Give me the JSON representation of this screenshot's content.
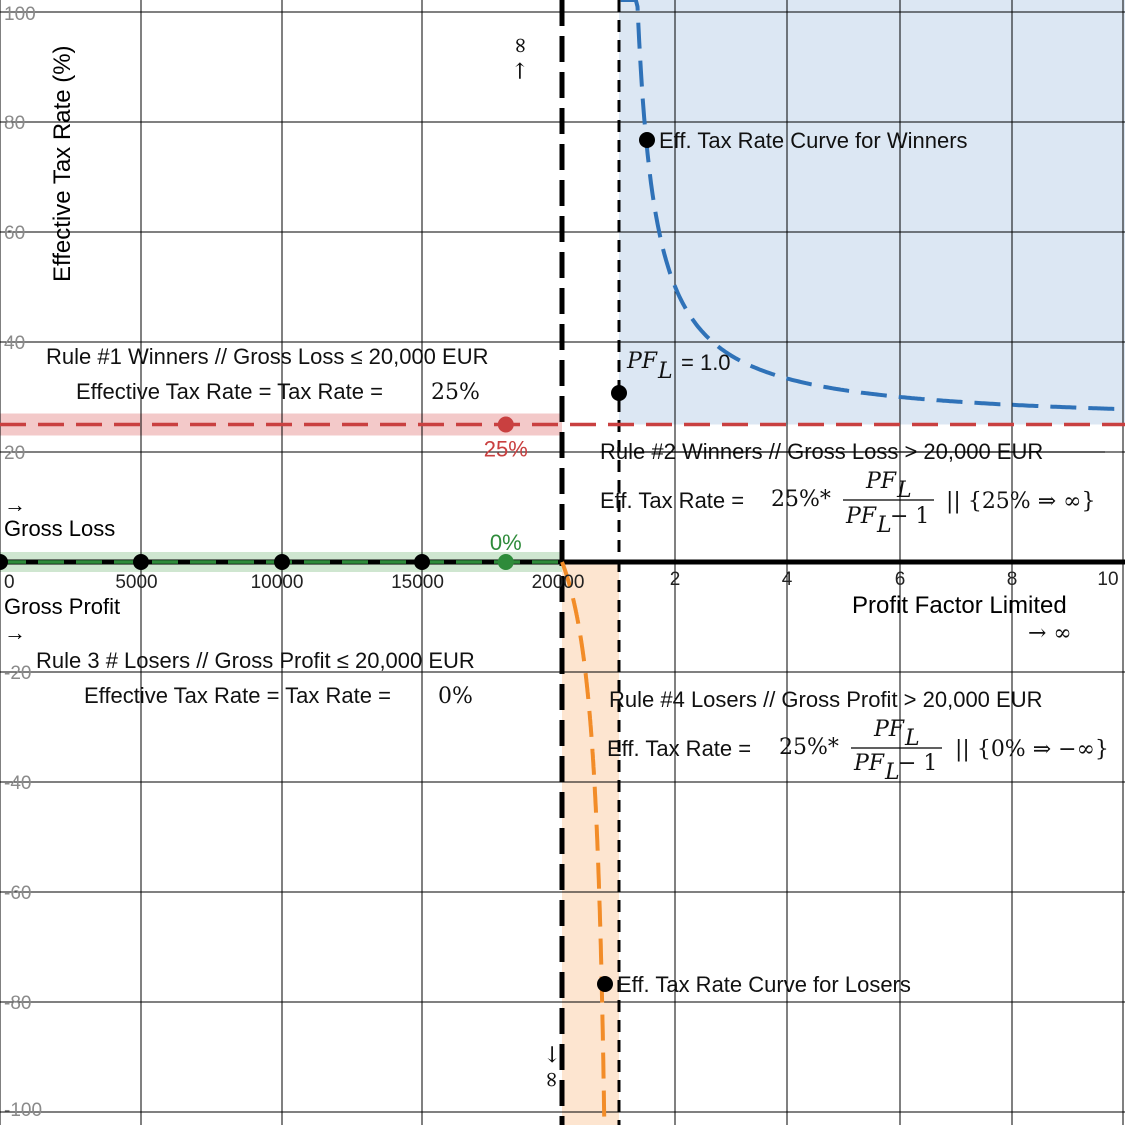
{
  "chart_data": {
    "type": "line",
    "ylabel": "Effective Tax Rate (%)",
    "xlabel": "Profit Factor Limited",
    "x_arrow": "→ ∞",
    "ylim": [
      -100,
      100
    ],
    "y_ticks": [
      "100",
      "80",
      "60",
      "40",
      "20",
      "-20",
      "-40",
      "-60",
      "-80",
      "-100"
    ],
    "left_axis": {
      "label_up": "Gross Loss",
      "label_down": "Gross Profit",
      "arrow_up": "→",
      "arrow_down": "→",
      "ticks": [
        0,
        5000,
        10000,
        15000,
        20000
      ],
      "tick_labels": [
        "0",
        "5000",
        "10000",
        "15000",
        "20000"
      ]
    },
    "right_axis": {
      "ticks": [
        2,
        4,
        6,
        8,
        10
      ],
      "tick_labels": [
        "2",
        "4",
        "6",
        "8",
        "10"
      ]
    },
    "divider_arrows": {
      "up": "→ ∞",
      "down": "→ ∞"
    },
    "series": [
      {
        "name": "Eff. Tax Rate Curve for Winners",
        "color": "#2f72b8",
        "formula": "25*pf/(pf-1)",
        "domain": [
          1.0,
          10
        ]
      },
      {
        "name": "Eff. Tax Rate Curve for Losers",
        "color": "#f28c28",
        "formula": "25*pf/(pf-1)",
        "domain": [
          0,
          1.0
        ]
      },
      {
        "name": "",
        "color": "#c94040",
        "value": 25
      },
      {
        "name": "",
        "color": "#2e8b3a",
        "value": 0
      }
    ],
    "points": [
      {
        "label": "25%",
        "color": "#c94040",
        "x": 18000,
        "y": 25,
        "axis": "left"
      },
      {
        "label": "0%",
        "color": "#2e8b3a",
        "x": 18000,
        "y": 0,
        "axis": "left"
      },
      {
        "label": "",
        "color": "#000000",
        "x": 0,
        "y": 0,
        "axis": "left"
      },
      {
        "label": "",
        "color": "#000000",
        "x": 5000,
        "y": 0,
        "axis": "left"
      },
      {
        "label": "",
        "color": "#000000",
        "x": 10000,
        "y": 0,
        "axis": "left"
      },
      {
        "label": "",
        "color": "#000000",
        "x": 15000,
        "y": 0,
        "axis": "left"
      },
      {
        "label": "",
        "color": "#000000",
        "x": 1.0,
        "y": 30,
        "axis": "right"
      },
      {
        "label": "",
        "color": "#000000",
        "x": 1.5,
        "y": 75,
        "axis": "right"
      },
      {
        "label": "",
        "color": "#000000",
        "x": 0.75,
        "y": -75,
        "axis": "right"
      }
    ],
    "annotations": {
      "pfl_label": "= 1.0",
      "winners_curve_label": "Eff. Tax Rate Curve for Winners",
      "losers_curve_label": "Eff. Tax Rate Curve for Losers",
      "rule1_title": "Rule #1 Winners // Gross Loss ≤ 20,000 EUR",
      "rule1_formula": "Effective Tax Rate = Tax Rate =",
      "rule1_value": "25%",
      "rule2_title": "Rule #2 Winners // Gross Loss  > 20,000 EUR",
      "rule2_formula": "Eff. Tax Rate =",
      "rule2_coeff": "25%*",
      "rule2_limit": "|| {25% ⇒ ∞}",
      "rule3_title": "Rule 3 #  Losers // Gross Profit  ≤ 20,000 EUR",
      "rule3_formula": "Effective Tax Rate = Tax Rate =",
      "rule3_value": "0%",
      "rule4_title": "Rule #4 Losers // Gross Profit > 20,000 EUR",
      "rule4_formula": "Eff. Tax Rate =",
      "rule4_coeff": "25%*",
      "rule4_limit": "|| {0% ⇒ −∞}",
      "pf_symbol": "PF",
      "pf_sub": "L",
      "minus_one": "− 1"
    },
    "colors": {
      "winners_fill": "#dce7f3",
      "losers_fill": "#fde5d0",
      "red_band": "#f3c9c9",
      "green_band": "#cfe6d0",
      "grid": "#000000"
    }
  }
}
